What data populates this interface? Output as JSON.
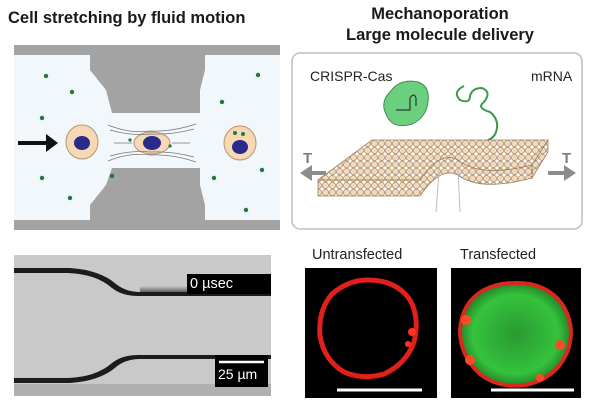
{
  "left_title": "Cell stretching by fluid motion",
  "right_title_line1": "Mechanoporation",
  "right_title_line2": "Large molecule delivery",
  "cargo": {
    "protein_label": "CRISPR-Cas",
    "rna_label": "mRNA"
  },
  "tension_label_left": "T",
  "tension_label_right": "T",
  "micrograph": {
    "time_label": "0 µsec",
    "scale_label": "25 µm"
  },
  "fluorescence": {
    "left_label": "Untransfected",
    "right_label": "Transfected"
  },
  "colors": {
    "membrane_red": "#e0201a",
    "transfected_green": "#2fbf3a",
    "cell_nucleus": "#2a2a8c",
    "cell_body": "#f6d9b4",
    "cargo_green": "#6ccf7e"
  }
}
